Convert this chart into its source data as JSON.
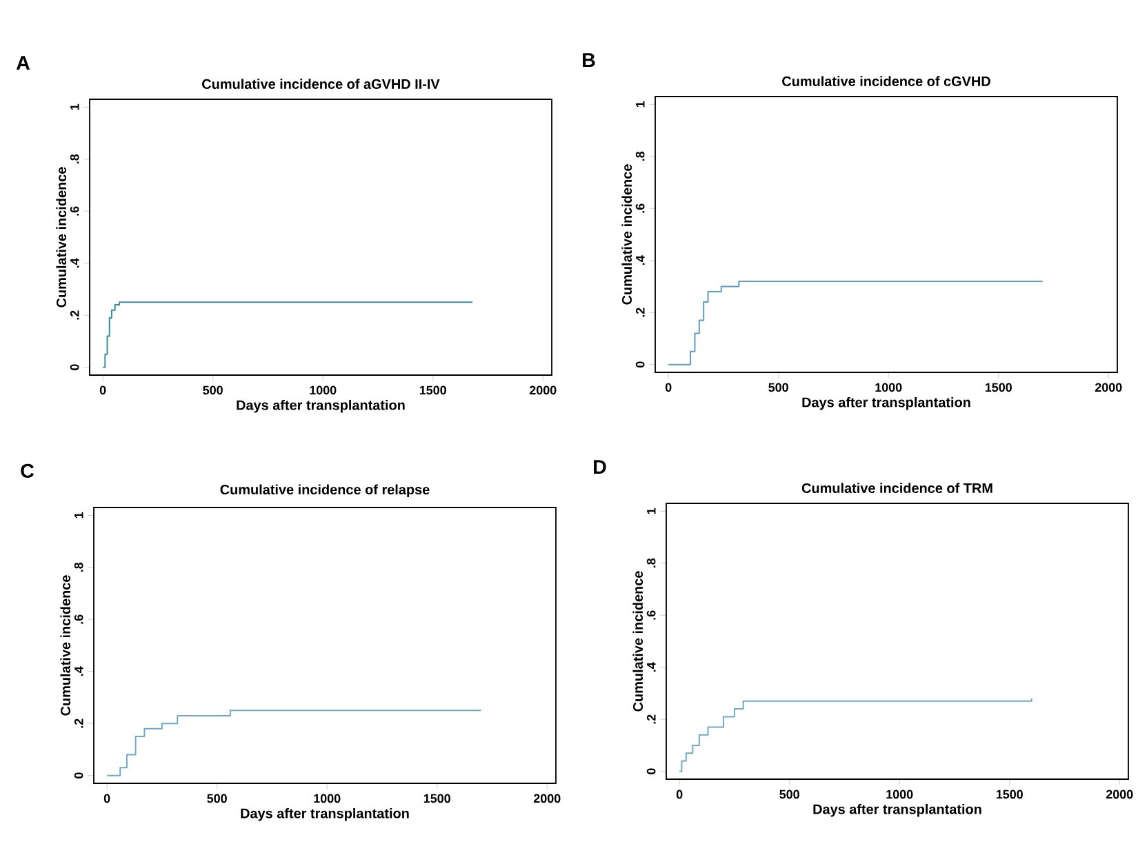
{
  "chart_data": [
    {
      "type": "step",
      "title": "Cumulative incidence of aGVHD II-IV",
      "xlabel": "Days after transplantation",
      "ylabel": "Cumulative incidence",
      "annotations": [
        "A"
      ],
      "x": [
        0,
        10,
        20,
        30,
        40,
        55,
        75,
        1680
      ],
      "series": [
        {
          "color": "#3a8fa0",
          "values": [
            0,
            0.05,
            0.12,
            0.19,
            0.22,
            0.24,
            0.25,
            0.25
          ]
        }
      ],
      "xlim": [
        -60,
        2040
      ],
      "ylim": [
        -0.03,
        1.03
      ],
      "xticks": [
        0,
        500,
        1000,
        1500,
        2000
      ],
      "yticks": [
        {
          "value": 0,
          "label": "0"
        },
        {
          "value": 0.2,
          "label": ".2"
        },
        {
          "value": 0.4,
          "label": ".4"
        },
        {
          "value": 0.6,
          "label": ".6"
        },
        {
          "value": 0.8,
          "label": ".8"
        },
        {
          "value": 1,
          "label": "1"
        }
      ]
    },
    {
      "type": "step",
      "title": "Cumulative incidence of cGVHD",
      "xlabel": "Days after transplantation",
      "ylabel": "Cumulative incidence",
      "annotations": [
        "B"
      ],
      "x": [
        0,
        90,
        100,
        120,
        140,
        160,
        180,
        240,
        320,
        1700
      ],
      "series": [
        {
          "color": "#5f9ec0",
          "values": [
            0,
            0,
            0.05,
            0.12,
            0.17,
            0.24,
            0.28,
            0.3,
            0.32,
            0.32
          ]
        }
      ],
      "xlim": [
        -60,
        2040
      ],
      "ylim": [
        -0.03,
        1.03
      ],
      "xticks": [
        0,
        500,
        1000,
        1500,
        2000
      ],
      "yticks": [
        {
          "value": 0,
          "label": "0"
        },
        {
          "value": 0.2,
          "label": ".2"
        },
        {
          "value": 0.4,
          "label": ".4"
        },
        {
          "value": 0.6,
          "label": ".6"
        },
        {
          "value": 0.8,
          "label": ".8"
        },
        {
          "value": 1,
          "label": "1"
        }
      ]
    },
    {
      "type": "step",
      "title": "Cumulative incidence of relapse",
      "xlabel": "Days after transplantation",
      "ylabel": "Cumulative incidence",
      "annotations": [
        "C"
      ],
      "x": [
        0,
        50,
        60,
        90,
        130,
        170,
        250,
        320,
        560,
        1700
      ],
      "series": [
        {
          "color": "#6fa8c8",
          "values": [
            0,
            0,
            0.03,
            0.08,
            0.15,
            0.18,
            0.2,
            0.23,
            0.25,
            0.25
          ]
        }
      ],
      "xlim": [
        -60,
        2040
      ],
      "ylim": [
        -0.03,
        1.03
      ],
      "xticks": [
        0,
        500,
        1000,
        1500,
        2000
      ],
      "yticks": [
        {
          "value": 0,
          "label": "0"
        },
        {
          "value": 0.2,
          "label": ".2"
        },
        {
          "value": 0.4,
          "label": ".4"
        },
        {
          "value": 0.6,
          "label": ".6"
        },
        {
          "value": 0.8,
          "label": ".8"
        },
        {
          "value": 1,
          "label": "1"
        }
      ]
    },
    {
      "type": "step",
      "title": "Cumulative incidence of TRM",
      "xlabel": "Days after transplantation",
      "ylabel": "Cumulative incidence",
      "annotations": [
        "D"
      ],
      "x": [
        0,
        10,
        30,
        60,
        90,
        130,
        200,
        250,
        290,
        1600
      ],
      "series": [
        {
          "color": "#6fa8c8",
          "values": [
            0,
            0.04,
            0.07,
            0.1,
            0.14,
            0.17,
            0.21,
            0.24,
            0.27,
            0.28
          ]
        }
      ],
      "xlim": [
        -60,
        2040
      ],
      "ylim": [
        -0.03,
        1.03
      ],
      "xticks": [
        0,
        500,
        1000,
        1500,
        2000
      ],
      "yticks": [
        {
          "value": 0,
          "label": "0"
        },
        {
          "value": 0.2,
          "label": ".2"
        },
        {
          "value": 0.4,
          "label": ".4"
        },
        {
          "value": 0.6,
          "label": ".6"
        },
        {
          "value": 0.8,
          "label": ".8"
        },
        {
          "value": 1,
          "label": "1"
        }
      ]
    }
  ]
}
